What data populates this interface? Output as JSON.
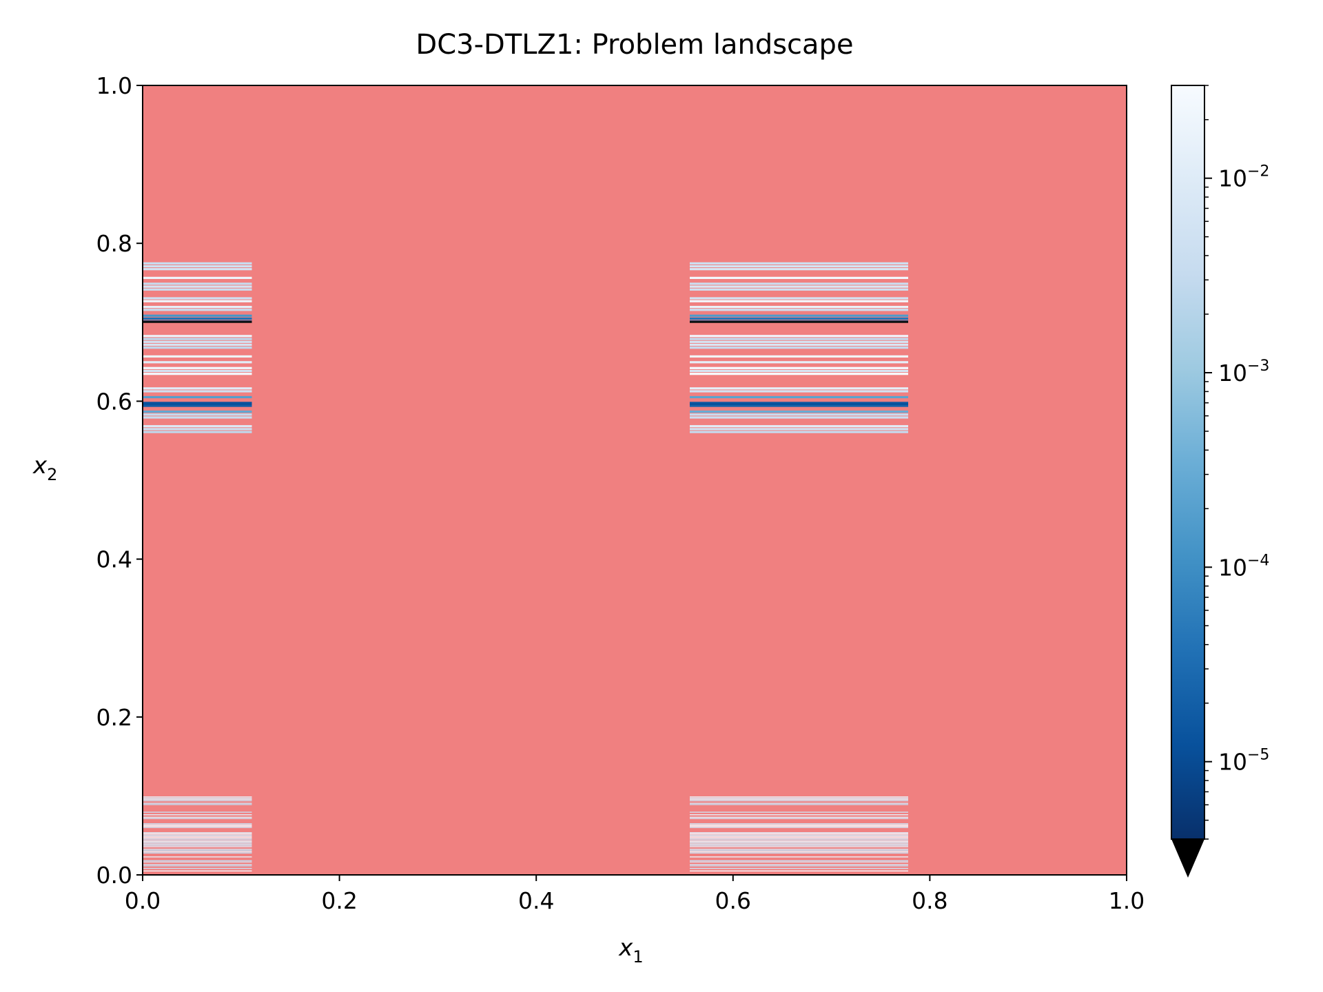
{
  "chart_data": {
    "type": "heatmap",
    "title": "DC3-DTLZ1: Problem landscape",
    "xlabel": {
      "base": "x",
      "sub": "1"
    },
    "ylabel": {
      "base": "x",
      "sub": "2"
    },
    "xlim": [
      0.0,
      1.0
    ],
    "ylim": [
      0.0,
      1.0
    ],
    "xticks": [
      "0.0",
      "0.2",
      "0.4",
      "0.6",
      "0.8",
      "1.0"
    ],
    "yticks": [
      "0.0",
      "0.2",
      "0.4",
      "0.6",
      "0.8",
      "1.0"
    ],
    "background_color": "#f08080",
    "infeasible_color": "#f08080",
    "feasible_x_ranges": [
      [
        0.0,
        0.111
      ],
      [
        0.556,
        0.778
      ]
    ],
    "feasible_y_ranges": [
      [
        0.004,
        0.101
      ],
      [
        0.555,
        0.776
      ]
    ],
    "min_stripes_y": [
      0.596,
      0.7
    ],
    "colorbar": {
      "scale": "log",
      "colormap": "Blues_r",
      "vmin": 4e-06,
      "vmax": 0.03,
      "extend": "min",
      "ticks": [
        {
          "value": 0.01,
          "base": "10",
          "exp": "−2"
        },
        {
          "value": 0.001,
          "base": "10",
          "exp": "−3"
        },
        {
          "value": 0.0001,
          "base": "10",
          "exp": "−4"
        },
        {
          "value": 1e-05,
          "base": "10",
          "exp": "−5"
        }
      ],
      "colors": [
        "#08306b",
        "#08519c",
        "#2171b5",
        "#4292c6",
        "#6baed6",
        "#9ecae1",
        "#c6dbef",
        "#deebf7",
        "#f7fbff"
      ]
    }
  }
}
